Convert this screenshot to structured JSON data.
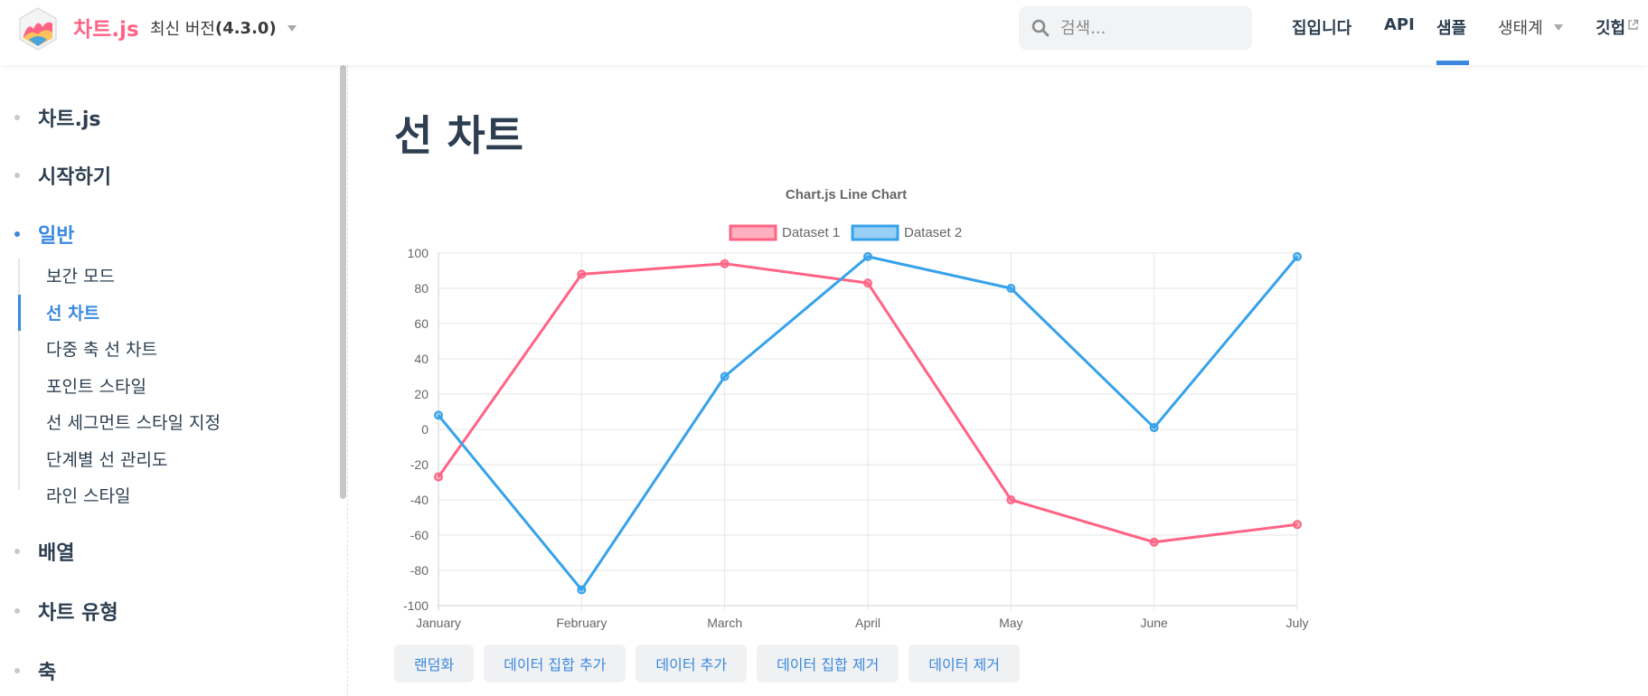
{
  "header": {
    "brand": "차트.js",
    "version_prefix": "최신 버전",
    "version_number": "(4.3.0)",
    "search_placeholder": "검색...",
    "nav": [
      "집입니다",
      "API",
      "샘플",
      "생태계",
      "깃헙"
    ],
    "active_nav": "샘플"
  },
  "sidebar": {
    "sections": [
      {
        "label": "차트.js"
      },
      {
        "label": "시작하기"
      },
      {
        "label": "일반"
      },
      {
        "label": "배열"
      },
      {
        "label": "차트 유형"
      },
      {
        "label": "축"
      }
    ],
    "sub_items": [
      "보간 모드",
      "선 차트",
      "다중 축 선 차트",
      "포인트 스타일",
      "선 세그먼트 스타일 지정",
      "단계별 선 관리도",
      "라인 스타일"
    ],
    "active_section": "일반",
    "active_sub_item": "선 차트"
  },
  "main": {
    "title": "선 차트",
    "buttons": [
      "랜덤화",
      "데이터 집합 추가",
      "데이터 추가",
      "데이터 집합 제거",
      "데이터 제거"
    ]
  },
  "colors": {
    "brand": "#ff6384",
    "accent": "#3a88e0",
    "dataset1": "#ff6384",
    "dataset2": "#36a2eb"
  },
  "chart_data": {
    "type": "line",
    "title": "Chart.js Line Chart",
    "categories": [
      "January",
      "February",
      "March",
      "April",
      "May",
      "June",
      "July"
    ],
    "series": [
      {
        "name": "Dataset 1",
        "values": [
          -27,
          88,
          94,
          83,
          -40,
          -64,
          -54
        ],
        "color": "#ff6384"
      },
      {
        "name": "Dataset 2",
        "values": [
          8,
          -91,
          30,
          98,
          80,
          1,
          98
        ],
        "color": "#36a2eb"
      }
    ],
    "ylim": [
      -100,
      100
    ],
    "yticks": [
      100,
      80,
      60,
      40,
      20,
      0,
      -20,
      -40,
      -60,
      -80,
      -100
    ],
    "grid": true,
    "legend": "top"
  }
}
